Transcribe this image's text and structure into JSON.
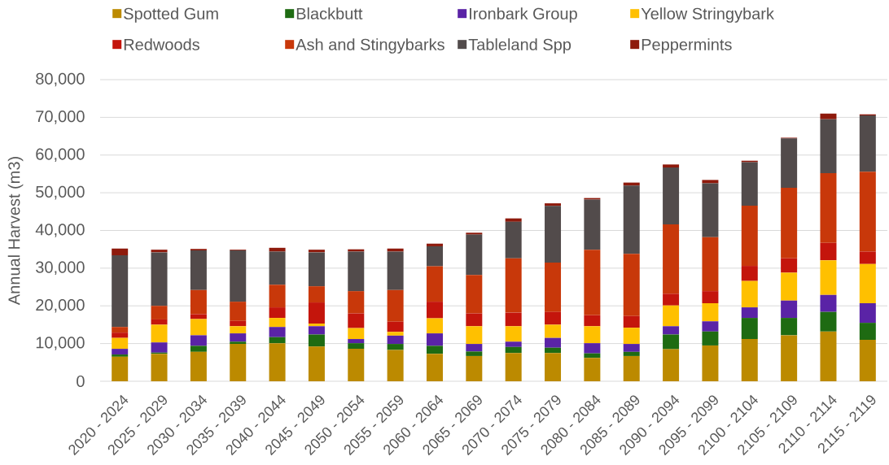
{
  "chart_data": {
    "type": "bar",
    "stacked": true,
    "ylabel": "Annual Harvest (m3)",
    "categories": [
      "2020 - 2024",
      "2025 - 2029",
      "2030 - 2034",
      "2035 - 2039",
      "2040 - 2044",
      "2045 - 2049",
      "2050 - 2054",
      "2055 - 2059",
      "2060 - 2064",
      "2065 - 2069",
      "2070 - 2074",
      "2075 - 2079",
      "2080 - 2084",
      "2085 - 2089",
      "2090 - 2094",
      "2095 - 2099",
      "2100 - 2104",
      "2105 - 2109",
      "2110 - 2114",
      "2115 - 2119"
    ],
    "series": [
      {
        "name": "Spotted Gum",
        "color": "#bc8a00",
        "values": [
          6500,
          7300,
          7800,
          9900,
          10100,
          9200,
          8600,
          8300,
          7300,
          6700,
          7500,
          7500,
          6200,
          6700,
          8500,
          9500,
          11200,
          12200,
          13200,
          11000
        ]
      },
      {
        "name": "Blackbutt",
        "color": "#1e6b12",
        "values": [
          600,
          300,
          1600,
          600,
          1600,
          3200,
          1500,
          1600,
          2100,
          1200,
          1600,
          1400,
          1200,
          1100,
          3900,
          3700,
          5600,
          4600,
          5200,
          4500
        ]
      },
      {
        "name": "Ironbark Group",
        "color": "#5a23a6",
        "values": [
          1500,
          2700,
          2800,
          2200,
          2700,
          2200,
          1100,
          2200,
          3300,
          2000,
          1400,
          2600,
          2700,
          2100,
          2200,
          2700,
          2800,
          4600,
          4500,
          5200
        ]
      },
      {
        "name": "Yellow Stringybark",
        "color": "#ffc000",
        "values": [
          2900,
          4700,
          4300,
          1900,
          2400,
          700,
          2900,
          1000,
          4000,
          4700,
          4100,
          3500,
          4500,
          4300,
          5500,
          4800,
          7000,
          7400,
          9200,
          10400
        ]
      },
      {
        "name": "Redwoods",
        "color": "#c4150c",
        "values": [
          1400,
          1400,
          1300,
          1400,
          2800,
          5600,
          3900,
          2700,
          4400,
          3400,
          3600,
          3400,
          2900,
          3100,
          3100,
          3200,
          4000,
          3800,
          4600,
          3300
        ]
      },
      {
        "name": "Ash and Stingybarks",
        "color": "#c8380a",
        "values": [
          1500,
          3600,
          6400,
          5100,
          6000,
          4300,
          5900,
          8400,
          9400,
          10200,
          14400,
          13100,
          17400,
          16500,
          18400,
          14300,
          16000,
          18700,
          18500,
          21200
        ]
      },
      {
        "name": "Tableland Spp",
        "color": "#524b4b",
        "values": [
          19000,
          14200,
          10500,
          13600,
          8800,
          9000,
          10500,
          10200,
          5300,
          10700,
          9700,
          15000,
          13300,
          18100,
          15100,
          14300,
          11500,
          13100,
          14300,
          14900
        ]
      },
      {
        "name": "Peppermints",
        "color": "#8e1a0c",
        "values": [
          1800,
          700,
          400,
          200,
          1000,
          700,
          600,
          800,
          700,
          500,
          900,
          700,
          400,
          800,
          800,
          900,
          400,
          200,
          1500,
          300
        ]
      }
    ],
    "ylim": [
      0,
      80000
    ],
    "yticks": [
      0,
      {
        "value": 10000,
        "label": "10,000"
      },
      {
        "value": 20000,
        "label": "20,000"
      },
      {
        "value": 30000,
        "label": "30,000"
      },
      {
        "value": 40000,
        "label": "40,000"
      },
      {
        "value": 50000,
        "label": "50,000"
      },
      {
        "value": 60000,
        "label": "60,000"
      },
      {
        "value": 70000,
        "label": "70,000"
      },
      {
        "value": 80000,
        "label": "80,000"
      }
    ],
    "grid": "y",
    "legend": "top"
  }
}
